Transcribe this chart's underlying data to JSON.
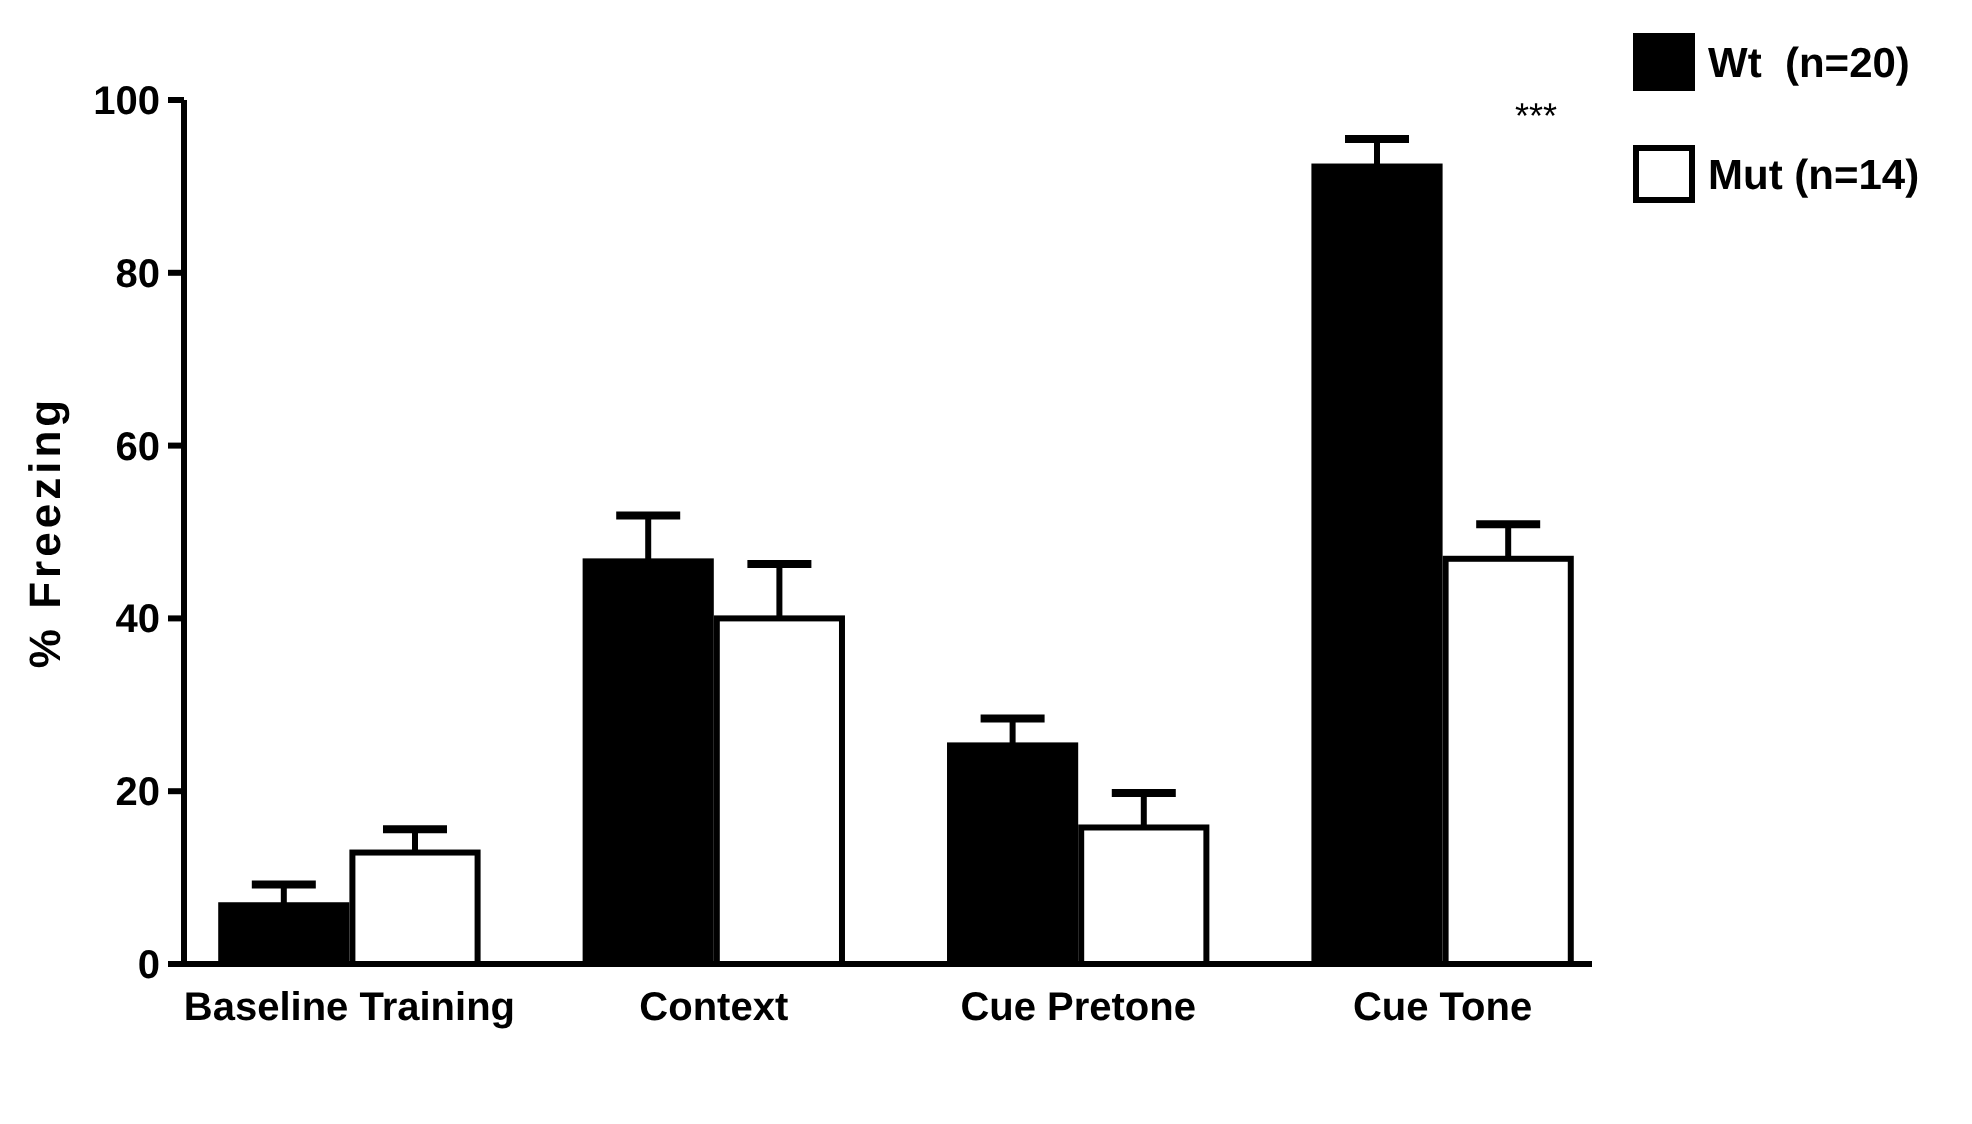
{
  "chart_data": {
    "type": "bar",
    "ylabel": "% Freezing",
    "categories": [
      "Baseline Training",
      "Context",
      "Cue Pretone",
      "Cue Tone"
    ],
    "series": [
      {
        "name": "Wt  (n=20)",
        "color": "#000000",
        "values": [
          6.8,
          46.6,
          25.3,
          92.3
        ],
        "errors": [
          2.4,
          5.3,
          3.1,
          3.2
        ]
      },
      {
        "name": "Mut (n=14)",
        "color": "#ffffff",
        "values": [
          12.9,
          40.0,
          15.8,
          46.9
        ],
        "errors": [
          2.7,
          6.3,
          4.0,
          4.0
        ]
      }
    ],
    "ylim": [
      0,
      100
    ],
    "yticks": [
      0,
      20,
      40,
      60,
      80,
      100
    ],
    "grid": false,
    "legend": "top right",
    "annotations": [
      "***"
    ]
  }
}
